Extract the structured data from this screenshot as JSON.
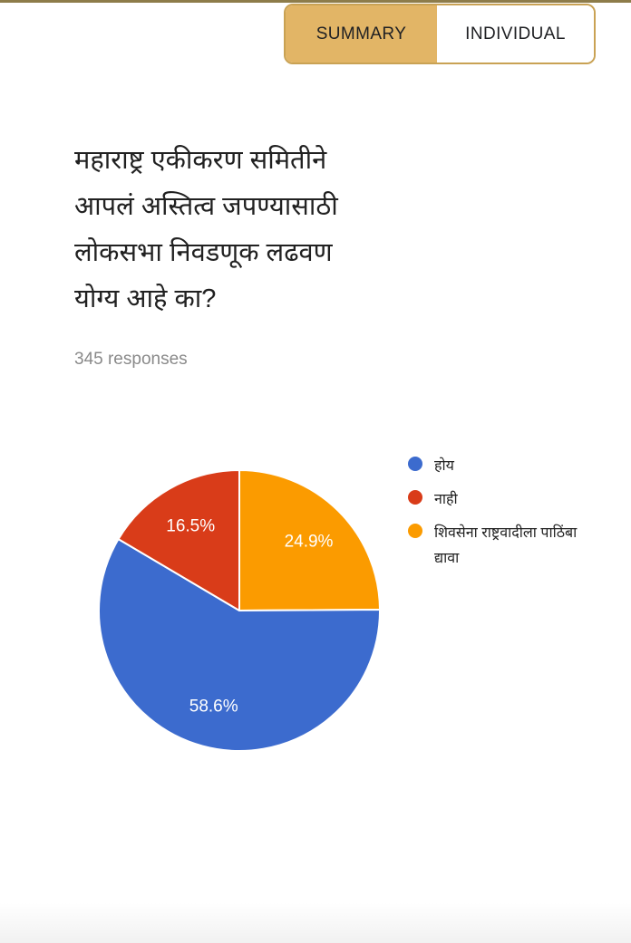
{
  "tabs": {
    "summary_label": "SUMMARY",
    "individual_label": "INDIVIDUAL",
    "active": "SUMMARY"
  },
  "question": {
    "lines": [
      "महाराष्ट्र एकीकरण समितीने",
      "आपलं अस्तित्व जपण्यासाठी",
      "लोकसभा निवडणूक लढवण",
      "योग्य आहे का?"
    ],
    "full_text": "महाराष्ट्र एकीकरण समितीने आपलं अस्तित्व जपण्यासाठी लोकसभा निवडणूक लढवण योग्य आहे का?"
  },
  "responses_count_label": "345 responses",
  "colors": {
    "tab_active_bg": "#e2b566",
    "tab_border": "#c9a254",
    "top_line": "#8d7c4a"
  },
  "chart_data": {
    "type": "pie",
    "title": "महाराष्ट्र एकीकरण समितीने आपलं अस्तित्व जपण्यासाठी लोकसभा निवडणूक लढवण योग्य आहे का?",
    "subtitle": "345 responses",
    "slices": [
      {
        "label": "होय",
        "value": 58.6,
        "value_label": "58.6%",
        "color": "#3c6bce"
      },
      {
        "label": "नाही",
        "value": 16.5,
        "value_label": "16.5%",
        "color": "#d93c19"
      },
      {
        "label": "शिवसेना राष्ट्रवादीला पाठिंबा द्यावा",
        "value": 24.9,
        "value_label": "24.9%",
        "color": "#fb9b00"
      }
    ],
    "draw_order": [
      2,
      0,
      1
    ],
    "start_angle_deg": 0,
    "direction": "clockwise",
    "legend_position": "right",
    "slice_border_color": "#ffffff",
    "slice_label_color": "#ffffff"
  }
}
